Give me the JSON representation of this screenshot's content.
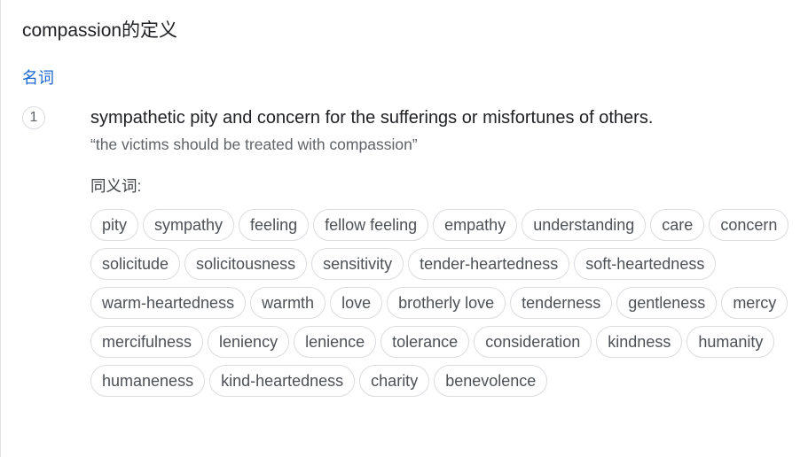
{
  "title": "compassion的定义",
  "part_of_speech": "名词",
  "sense": {
    "number": "1",
    "definition": "sympathetic pity and concern for the sufferings or misfortunes of others.",
    "example": "“the victims should be treated with compassion”",
    "synonyms_label": "同义词:",
    "synonyms": [
      "pity",
      "sympathy",
      "feeling",
      "fellow feeling",
      "empathy",
      "understanding",
      "care",
      "concern",
      "solicitude",
      "solicitousness",
      "sensitivity",
      "tender-heartedness",
      "soft-heartedness",
      "warm-heartedness",
      "warmth",
      "love",
      "brotherly love",
      "tenderness",
      "gentleness",
      "mercy",
      "mercifulness",
      "leniency",
      "lenience",
      "tolerance",
      "consideration",
      "kindness",
      "humanity",
      "humaneness",
      "kind-heartedness",
      "charity",
      "benevolence"
    ]
  }
}
